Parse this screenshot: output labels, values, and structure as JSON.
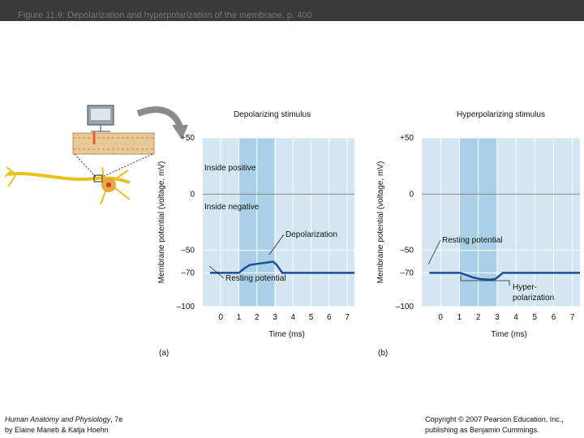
{
  "header": {
    "title": "Figure 11.9: Depolarization and hyperpolarization of the membrane, p. 400"
  },
  "chart_data": [
    {
      "type": "line",
      "title": "Depolarizing stimulus",
      "panel_label": "(a)",
      "x_label": "Time (ms)",
      "y_label": "Membrane potential (voltage, mV)",
      "xlim": [
        -1,
        7.4
      ],
      "xticks": [
        0,
        1,
        2,
        3,
        4,
        5,
        6,
        7
      ],
      "ylim": [
        -100,
        50
      ],
      "yticks": [
        {
          "value": 50,
          "label": "+50"
        },
        0,
        {
          "value": -50,
          "label": "–50"
        },
        {
          "value": -70,
          "label": "–70"
        },
        {
          "value": -100,
          "label": "–100"
        }
      ],
      "grid": true,
      "stimulus_x": [
        1,
        3
      ],
      "series": [
        {
          "color": "#1c4f9c",
          "x": [
            -0.6,
            1,
            1.3,
            1.6,
            2,
            2.5,
            2.9,
            3.1,
            3.4,
            7.4
          ],
          "values": [
            -70,
            -70,
            -66,
            -63,
            -62,
            -61,
            -60,
            -63,
            -70,
            -70
          ]
        }
      ],
      "annotations": [
        "Inside positive",
        "Inside negative",
        "Depolarization",
        "Resting potential"
      ]
    },
    {
      "type": "line",
      "title": "Hyperpolarizing stimulus",
      "panel_label": "(b)",
      "x_label": "Time (ms)",
      "y_label": "Membrane potential (voltage, mV)",
      "xlim": [
        -1,
        7.4
      ],
      "xticks": [
        0,
        1,
        2,
        3,
        4,
        5,
        6,
        7
      ],
      "ylim": [
        -100,
        50
      ],
      "yticks": [
        {
          "value": 50,
          "label": "+50"
        },
        0,
        {
          "value": -50,
          "label": "–50"
        },
        {
          "value": -70,
          "label": "–70"
        },
        {
          "value": -100,
          "label": "–100"
        }
      ],
      "grid": true,
      "stimulus_x": [
        1,
        3
      ],
      "series": [
        {
          "color": "#1c4f9c",
          "x": [
            -0.6,
            1,
            1.3,
            1.7,
            2.1,
            2.6,
            2.9,
            3.1,
            3.3,
            7.4
          ],
          "values": [
            -70,
            -70,
            -71.5,
            -74,
            -75.5,
            -76,
            -75.5,
            -73,
            -70,
            -70
          ]
        }
      ],
      "annotations": [
        "Resting potential",
        "Hyper-",
        "polarization"
      ]
    }
  ],
  "footer": {
    "book": "Human Anatomy and Physiology",
    "edition": ", 7e",
    "authors": "by Elaine Marieb & Katja Hoehn",
    "copyright_1": "Copyright © 2007 Pearson Education, Inc.,",
    "copyright_2": "publishing as Benjamin Cummings."
  }
}
